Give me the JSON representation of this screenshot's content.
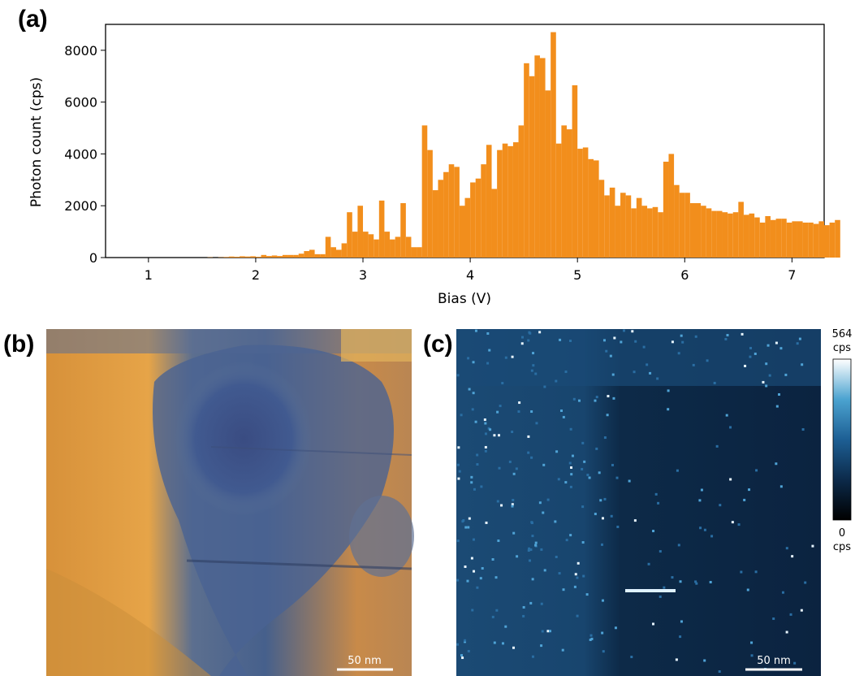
{
  "panel_labels": {
    "a": "(a)",
    "b": "(b)",
    "c": "(c)"
  },
  "chart_data": [
    {
      "type": "bar",
      "panel": "(a)",
      "title": "",
      "xlabel": "Bias (V)",
      "ylabel": "Photon count (cps)",
      "xlim": [
        0.6,
        7.3
      ],
      "ylim": [
        0,
        9000
      ],
      "xticks": [
        "1",
        "2",
        "3",
        "4",
        "5",
        "6",
        "7"
      ],
      "yticks": [
        "0",
        "2000",
        "4000",
        "6000",
        "8000"
      ],
      "bin_start": 1.0,
      "bin_width": 0.05,
      "color": "#f28e1c",
      "grid": false,
      "values": [
        0,
        0,
        0,
        0,
        0,
        0,
        0,
        0,
        0,
        0,
        0,
        10,
        0,
        10,
        20,
        40,
        30,
        50,
        40,
        50,
        30,
        100,
        60,
        80,
        60,
        100,
        100,
        100,
        150,
        250,
        300,
        130,
        130,
        800,
        400,
        300,
        550,
        1750,
        1000,
        2000,
        1000,
        900,
        700,
        2200,
        1000,
        700,
        800,
        2100,
        800,
        400,
        400,
        5100,
        4150,
        2600,
        3000,
        3300,
        3600,
        3500,
        2000,
        2300,
        2900,
        3050,
        3600,
        4350,
        2650,
        4150,
        4400,
        4300,
        4450,
        5100,
        7500,
        7000,
        7800,
        7700,
        6450,
        8700,
        4400,
        5100,
        4950,
        6650,
        4200,
        4250,
        3800,
        3750,
        3000,
        2400,
        2700,
        2000,
        2500,
        2400,
        1900,
        2300,
        2000,
        1900,
        1950,
        1750,
        3700,
        4000,
        2800,
        2500,
        2500,
        2100,
        2100,
        2000,
        1900,
        1800,
        1800,
        1750,
        1700,
        1750,
        2150,
        1650,
        1700,
        1550,
        1350,
        1600,
        1450,
        1500,
        1500,
        1350,
        1400,
        1400,
        1350,
        1350,
        1300,
        1400,
        1250,
        1350,
        1450
      ]
    },
    {
      "type": "heatmap",
      "panel": "(b)",
      "description_colormap": "blue-to-orange",
      "scale_bar": "50 nm"
    },
    {
      "type": "heatmap",
      "panel": "(c)",
      "colorbar": {
        "max_label": "564",
        "max_unit": "cps",
        "min_label": "0",
        "min_unit": "cps",
        "vmax": 564,
        "vmin": 0
      },
      "scale_bar": "50 nm"
    }
  ]
}
